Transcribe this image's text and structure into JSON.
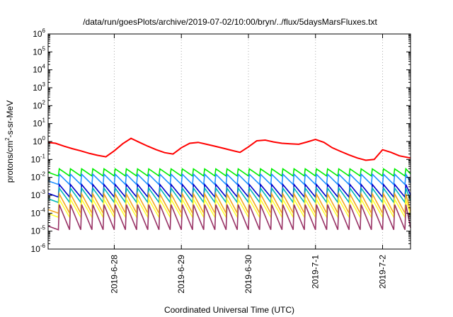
{
  "chart_data": {
    "type": "line",
    "title": "/data/run/goesPlots/archive/2019-07-02/10:00/bryn/../flux/5daysMarsFluxes.txt",
    "xlabel": "Coordinated Universal Time (UTC)",
    "ylabel": {
      "prefix": "protons/cm",
      "sup": "2",
      "suffix": "-s-sr-MeV"
    },
    "y_scale": "log",
    "ylim": [
      1e-06,
      1000000.0
    ],
    "y_ticks": [
      {
        "base": "10",
        "exp": "-6",
        "value": 1e-06
      },
      {
        "base": "10",
        "exp": "-5",
        "value": 1e-05
      },
      {
        "base": "10",
        "exp": "-4",
        "value": 0.0001
      },
      {
        "base": "10",
        "exp": "-3",
        "value": 0.001
      },
      {
        "base": "10",
        "exp": "-2",
        "value": 0.01
      },
      {
        "base": "10",
        "exp": "-1",
        "value": 0.1
      },
      {
        "base": "10",
        "exp": "0",
        "value": 1
      },
      {
        "base": "10",
        "exp": "1",
        "value": 10
      },
      {
        "base": "10",
        "exp": "2",
        "value": 100
      },
      {
        "base": "10",
        "exp": "3",
        "value": 1000
      },
      {
        "base": "10",
        "exp": "4",
        "value": 10000
      },
      {
        "base": "10",
        "exp": "5",
        "value": 100000
      },
      {
        "base": "10",
        "exp": "6",
        "value": 1000000
      }
    ],
    "x_unit": "days",
    "xlim": [
      "2019-06-27T00:20",
      "2019-07-02T10:00"
    ],
    "x_ticks": [
      {
        "label": "2019-6-28",
        "value": "2019-06-28T00:00"
      },
      {
        "label": "2019-6-29",
        "value": "2019-06-29T00:00"
      },
      {
        "label": "2019-6-30",
        "value": "2019-06-30T00:00"
      },
      {
        "label": "2019-7-1",
        "value": "2019-07-01T00:00"
      },
      {
        "label": "2019-7-2",
        "value": "2019-07-02T00:00"
      }
    ],
    "grid": true,
    "legend": false,
    "series": [
      {
        "color": "#ff0000",
        "style": "stepped-decay",
        "points": [
          [
            "2019-06-27T00:20",
            0.9
          ],
          [
            "2019-06-27T03:00",
            0.8
          ],
          [
            "2019-06-27T06:00",
            0.55
          ],
          [
            "2019-06-27T09:00",
            0.4
          ],
          [
            "2019-06-27T12:00",
            0.3
          ],
          [
            "2019-06-27T15:00",
            0.22
          ],
          [
            "2019-06-27T18:00",
            0.17
          ],
          [
            "2019-06-27T21:00",
            0.14
          ],
          [
            "2019-06-28T00:00",
            0.3
          ],
          [
            "2019-06-28T03:00",
            0.75
          ],
          [
            "2019-06-28T06:00",
            1.5
          ],
          [
            "2019-06-28T09:00",
            0.9
          ],
          [
            "2019-06-28T12:00",
            0.55
          ],
          [
            "2019-06-28T15:00",
            0.35
          ],
          [
            "2019-06-28T18:00",
            0.24
          ],
          [
            "2019-06-28T21:00",
            0.2
          ],
          [
            "2019-06-29T00:00",
            0.45
          ],
          [
            "2019-06-29T03:00",
            0.8
          ],
          [
            "2019-06-29T06:00",
            0.9
          ],
          [
            "2019-06-29T09:00",
            0.7
          ],
          [
            "2019-06-29T12:00",
            0.55
          ],
          [
            "2019-06-29T15:00",
            0.42
          ],
          [
            "2019-06-29T18:00",
            0.32
          ],
          [
            "2019-06-29T21:00",
            0.25
          ],
          [
            "2019-06-30T00:00",
            0.5
          ],
          [
            "2019-06-30T03:00",
            1.1
          ],
          [
            "2019-06-30T06:00",
            1.2
          ],
          [
            "2019-06-30T09:00",
            0.95
          ],
          [
            "2019-06-30T12:00",
            0.8
          ],
          [
            "2019-06-30T15:00",
            0.75
          ],
          [
            "2019-06-30T18:00",
            0.7
          ],
          [
            "2019-06-30T21:00",
            0.95
          ],
          [
            "2019-07-01T00:00",
            1.3
          ],
          [
            "2019-07-01T03:00",
            0.9
          ],
          [
            "2019-07-01T06:00",
            0.45
          ],
          [
            "2019-07-01T09:00",
            0.28
          ],
          [
            "2019-07-01T12:00",
            0.18
          ],
          [
            "2019-07-01T15:00",
            0.12
          ],
          [
            "2019-07-01T18:00",
            0.09
          ],
          [
            "2019-07-01T21:00",
            0.1
          ],
          [
            "2019-07-02T00:00",
            0.35
          ],
          [
            "2019-07-02T03:00",
            0.25
          ],
          [
            "2019-07-02T06:00",
            0.16
          ],
          [
            "2019-07-02T10:00",
            0.12
          ]
        ]
      },
      {
        "color": "#00ee00",
        "style": "sawtooth",
        "high": 0.03,
        "low": 0.012,
        "period_hours": 4
      },
      {
        "color": "#1e90ff",
        "style": "sawtooth",
        "high": 0.015,
        "low": 0.004,
        "period_hours": 4
      },
      {
        "color": "#0000cd",
        "style": "sawtooth",
        "high": 0.004,
        "low": 0.0008,
        "period_hours": 4
      },
      {
        "color": "#00b7b7",
        "style": "sawtooth",
        "high": 0.0025,
        "low": 0.0004,
        "period_hours": 4
      },
      {
        "color": "#f5a623",
        "style": "sawtooth",
        "high": 0.0012,
        "low": 0.0001,
        "period_hours": 4
      },
      {
        "color": "#ffff33",
        "style": "sawtooth",
        "high": 0.0006,
        "low": 6e-05,
        "period_hours": 4
      },
      {
        "color": "#993366",
        "style": "sawtooth",
        "high": 0.0003,
        "low": 1.2e-05,
        "period_hours": 4
      }
    ]
  }
}
